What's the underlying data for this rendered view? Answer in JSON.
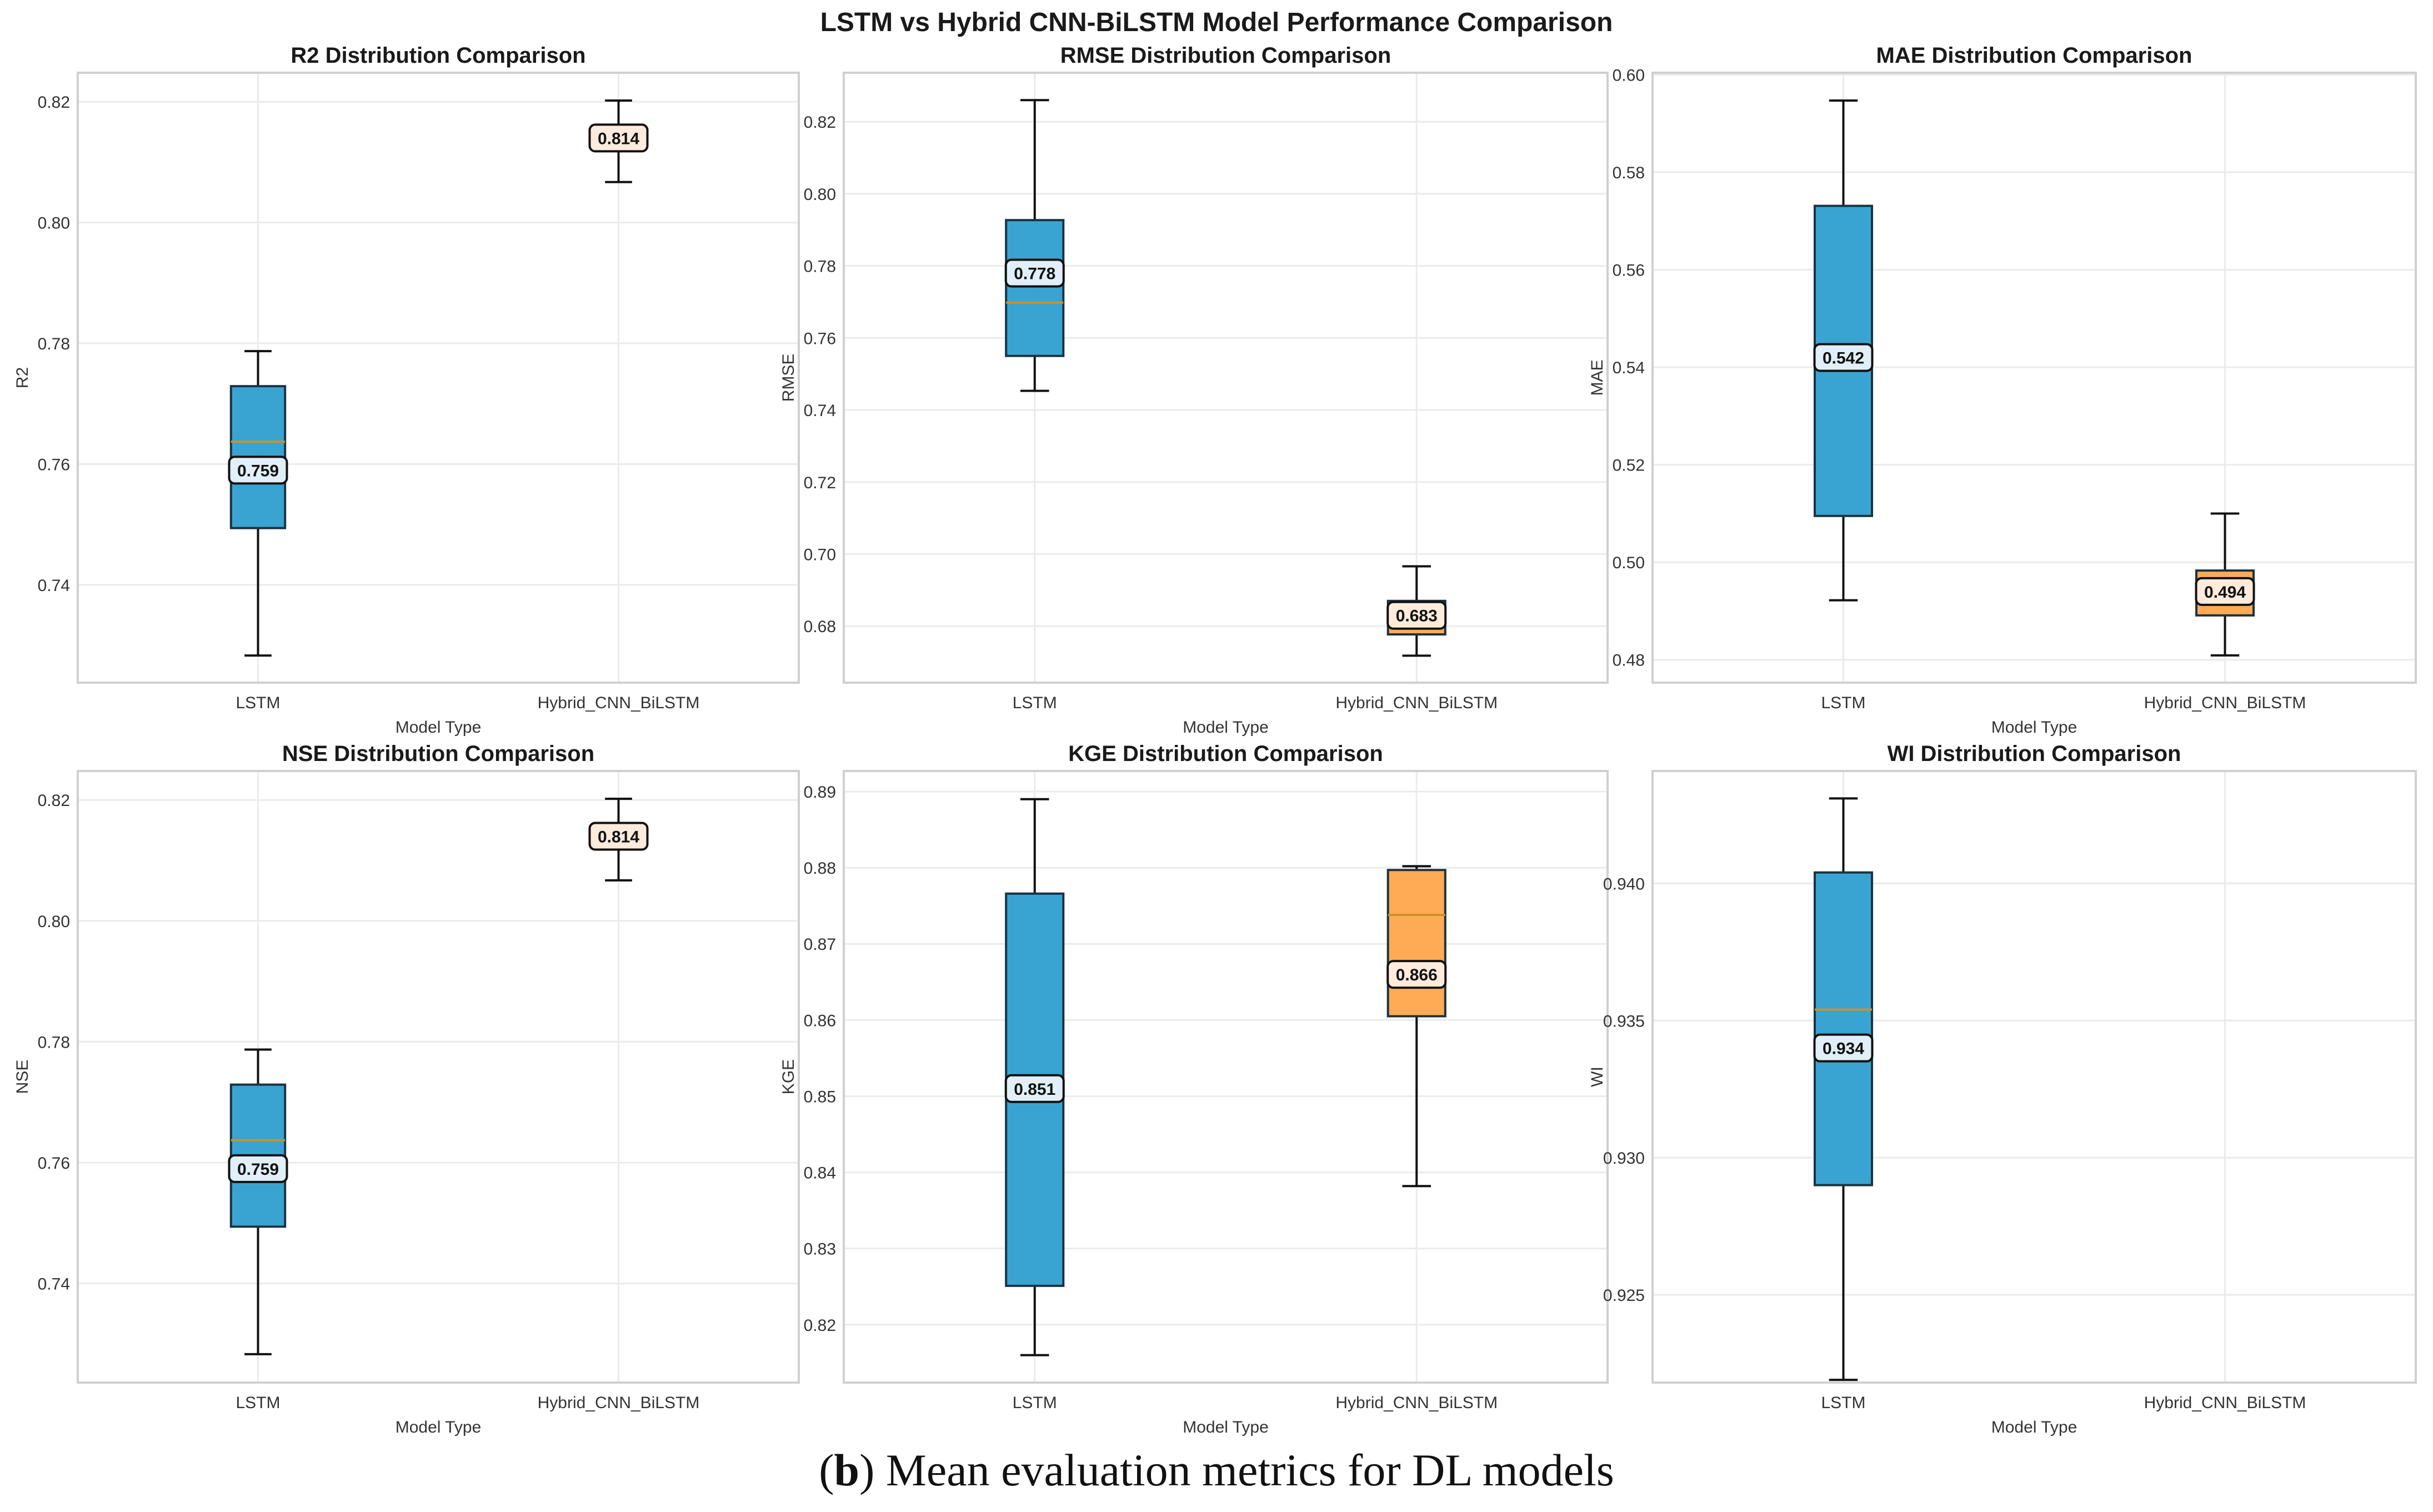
{
  "caption": {
    "prefix": "(",
    "letter": "b",
    "text": ") Mean evaluation metrics for DL models"
  },
  "colors": {
    "lstm": "#2e9fcf",
    "hybrid": "#ffa64d",
    "median": "#c8932a",
    "lstm_label_bg": "#e0eff8",
    "hybrid_label_bg": "#fdebdc",
    "grid": "#ebebeb",
    "frame": "#d0d0d0"
  },
  "chart_data": {
    "type": "box",
    "suptitle": "LSTM vs Hybrid CNN-BiLSTM Model Performance Comparison",
    "categories": [
      "LSTM",
      "Hybrid_CNN_BiLSTM"
    ],
    "panels": [
      {
        "title": "R2 Distribution Comparison",
        "xlabel": "Model Type",
        "ylabel": "R2",
        "ylim": [
          0.7238,
          0.8248
        ],
        "yticks": [
          0.74,
          0.76,
          0.78,
          0.8,
          0.82
        ],
        "ytick_labels": [
          "0.74",
          "0.76",
          "0.78",
          "0.80",
          "0.82"
        ],
        "series": [
          {
            "name": "LSTM",
            "whisker_low": 0.7283,
            "q1": 0.7494,
            "median": 0.7637,
            "q3": 0.7729,
            "whisker_high": 0.7787,
            "mean": 0.759,
            "mean_label": "0.759"
          },
          {
            "name": "Hybrid_CNN_BiLSTM",
            "whisker_low": 0.8067,
            "q1": 0.8121,
            "median": 0.8137,
            "q3": 0.815,
            "whisker_high": 0.8202,
            "mean": 0.814,
            "mean_label": "0.814"
          }
        ]
      },
      {
        "title": "RMSE Distribution Comparison",
        "xlabel": "Model Type",
        "ylabel": "RMSE",
        "ylim": [
          0.6643,
          0.8336
        ],
        "yticks": [
          0.68,
          0.7,
          0.72,
          0.74,
          0.76,
          0.78,
          0.8,
          0.82
        ],
        "ytick_labels": [
          "0.68",
          "0.70",
          "0.72",
          "0.74",
          "0.76",
          "0.78",
          "0.80",
          "0.82"
        ],
        "series": [
          {
            "name": "LSTM",
            "whisker_low": 0.7453,
            "q1": 0.755,
            "median": 0.7698,
            "q3": 0.7927,
            "whisker_high": 0.826,
            "mean": 0.778,
            "mean_label": "0.778"
          },
          {
            "name": "Hybrid_CNN_BiLSTM",
            "whisker_low": 0.6718,
            "q1": 0.6777,
            "median": 0.6815,
            "q3": 0.687,
            "whisker_high": 0.6966,
            "mean": 0.683,
            "mean_label": "0.683"
          }
        ]
      },
      {
        "title": "MAE Distribution Comparison",
        "xlabel": "Model Type",
        "ylabel": "MAE",
        "ylim": [
          0.4753,
          0.6004
        ],
        "yticks": [
          0.48,
          0.5,
          0.52,
          0.54,
          0.56,
          0.58,
          0.6
        ],
        "ytick_labels": [
          "0.48",
          "0.50",
          "0.52",
          "0.54",
          "0.56",
          "0.58",
          "0.60"
        ],
        "series": [
          {
            "name": "LSTM",
            "whisker_low": 0.4922,
            "q1": 0.5095,
            "median": 0.5408,
            "q3": 0.5731,
            "whisker_high": 0.5947,
            "mean": 0.542,
            "mean_label": "0.542"
          },
          {
            "name": "Hybrid_CNN_BiLSTM",
            "whisker_low": 0.4809,
            "q1": 0.4891,
            "median": 0.4933,
            "q3": 0.4983,
            "whisker_high": 0.51,
            "mean": 0.494,
            "mean_label": "0.494"
          }
        ]
      },
      {
        "title": "NSE Distribution Comparison",
        "xlabel": "Model Type",
        "ylabel": "NSE",
        "ylim": [
          0.7236,
          0.8248
        ],
        "yticks": [
          0.74,
          0.76,
          0.78,
          0.8,
          0.82
        ],
        "ytick_labels": [
          "0.74",
          "0.76",
          "0.78",
          "0.80",
          "0.82"
        ],
        "series": [
          {
            "name": "LSTM",
            "whisker_low": 0.7283,
            "q1": 0.7494,
            "median": 0.7637,
            "q3": 0.7729,
            "whisker_high": 0.7787,
            "mean": 0.759,
            "mean_label": "0.759"
          },
          {
            "name": "Hybrid_CNN_BiLSTM",
            "whisker_low": 0.8067,
            "q1": 0.8121,
            "median": 0.8137,
            "q3": 0.815,
            "whisker_high": 0.8202,
            "mean": 0.814,
            "mean_label": "0.814"
          }
        ]
      },
      {
        "title": "KGE Distribution Comparison",
        "xlabel": "Model Type",
        "ylabel": "KGE",
        "ylim": [
          0.8124,
          0.8927
        ],
        "yticks": [
          0.82,
          0.83,
          0.84,
          0.85,
          0.86,
          0.87,
          0.88,
          0.89
        ],
        "ytick_labels": [
          "0.82",
          "0.83",
          "0.84",
          "0.85",
          "0.86",
          "0.87",
          "0.88",
          "0.89"
        ],
        "series": [
          {
            "name": "LSTM",
            "whisker_low": 0.816,
            "q1": 0.8251,
            "median": 0.8502,
            "q3": 0.8766,
            "whisker_high": 0.889,
            "mean": 0.851,
            "mean_label": "0.851"
          },
          {
            "name": "Hybrid_CNN_BiLSTM",
            "whisker_low": 0.8382,
            "q1": 0.8605,
            "median": 0.8738,
            "q3": 0.8797,
            "whisker_high": 0.8802,
            "mean": 0.866,
            "mean_label": "0.866"
          }
        ]
      },
      {
        "title": "WI Distribution Comparison",
        "xlabel": "Model Type",
        "ylabel": "WI",
        "ylim": [
          0.9218,
          0.9441
        ],
        "yticks": [
          0.925,
          0.93,
          0.935,
          0.94
        ],
        "ytick_labels": [
          "0.925",
          "0.930",
          "0.935",
          "0.940"
        ],
        "series": [
          {
            "name": "LSTM",
            "whisker_low": 0.9219,
            "q1": 0.929,
            "median": 0.9354,
            "q3": 0.9404,
            "whisker_high": 0.9431,
            "mean": 0.934,
            "mean_label": "0.934"
          },
          {
            "name": "Hybrid_CNN_BiLSTM",
            "whisker_low": null,
            "q1": null,
            "median": null,
            "q3": null,
            "whisker_high": null,
            "mean": null,
            "mean_label": null
          }
        ]
      }
    ]
  }
}
